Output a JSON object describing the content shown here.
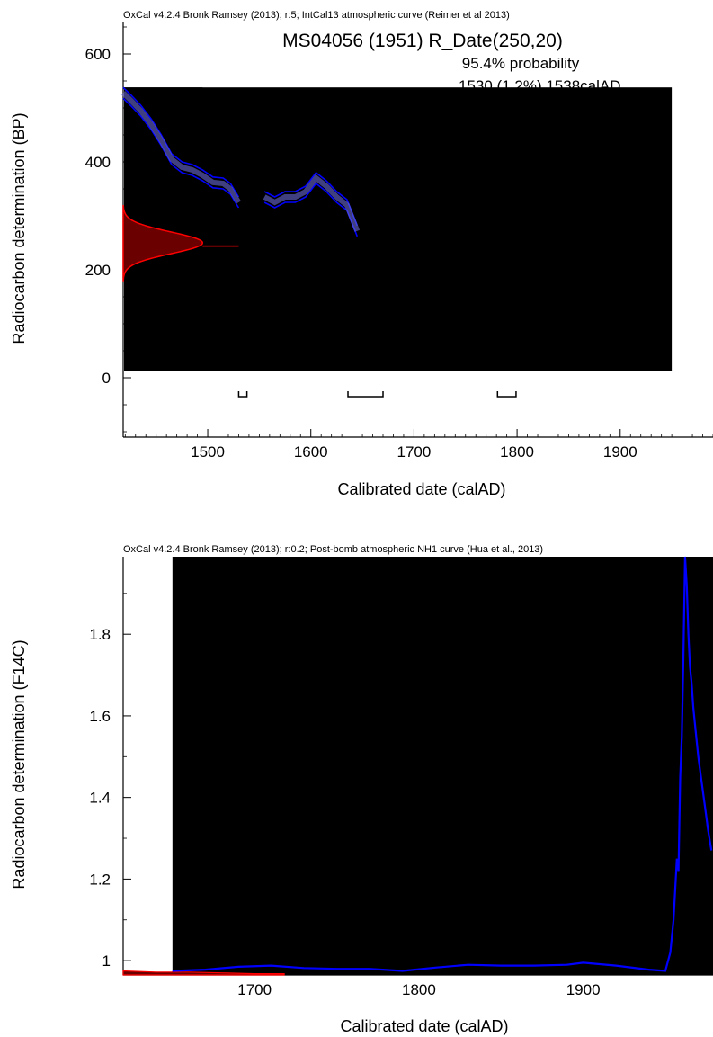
{
  "chart_data": [
    {
      "type": "line",
      "header": "OxCal v4.2.4 Bronk Ramsey (2013); r:5; IntCal13 atmospheric curve (Reimer et al 2013)",
      "title": "MS04056 (1951) R_Date(250,20)",
      "annotations": [
        "95.4% probability",
        "1530 (1.2%) 1538calAD"
      ],
      "xlabel": "Calibrated date (calAD)",
      "ylabel": "Radiocarbon determination (BP)",
      "xlim": [
        1418,
        1990
      ],
      "ylim": [
        -110,
        660
      ],
      "x_ticks": [
        1500,
        1600,
        1700,
        1800,
        1900
      ],
      "y_ticks": [
        0,
        200,
        400,
        600
      ],
      "grid": false,
      "colors": {
        "curve": "#0000ff",
        "band": "#6b6bd6",
        "measurement": "#ff0000",
        "measurement_fill": "#6b0000",
        "occluder": "#000000"
      },
      "occluders": [
        {
          "x": [
            1418,
            1950
          ],
          "y": [
            12,
            538
          ]
        },
        {
          "x": [
            1418,
            1495
          ],
          "y": [
            64,
            538
          ]
        }
      ],
      "series": [
        {
          "name": "IntCal13",
          "x": [
            1418,
            1425,
            1435,
            1445,
            1455,
            1465,
            1475,
            1485,
            1495,
            1505,
            1515,
            1522,
            1530
          ],
          "y": [
            528,
            515,
            495,
            470,
            440,
            405,
            390,
            385,
            375,
            362,
            360,
            350,
            325
          ]
        },
        {
          "name": "IntCal13 (2)",
          "x": [
            1555,
            1565,
            1575,
            1585,
            1595,
            1605,
            1615,
            1625,
            1635,
            1645
          ],
          "y": [
            335,
            325,
            335,
            335,
            345,
            370,
            355,
            335,
            320,
            272
          ]
        }
      ],
      "measurement": {
        "mean": 250,
        "sd": 20
      },
      "ranges_95": [
        [
          1530,
          1538
        ],
        [
          1636,
          1670
        ],
        [
          1781,
          1799
        ]
      ]
    },
    {
      "type": "line",
      "header": "OxCal v4.2.4 Bronk Ramsey (2013); r:0.2; Post-bomb atmospheric NH1 curve (Hua et al., 2013)",
      "xlabel": "Calibrated date (calAD)",
      "ylabel": "Radiocarbon determination (F14C)",
      "xlim": [
        1620,
        1979
      ],
      "ylim": [
        0.965,
        1.99
      ],
      "x_ticks": [
        1700,
        1800,
        1900
      ],
      "y_ticks": [
        1,
        1.2,
        1.4,
        1.6,
        1.8
      ],
      "grid": false,
      "colors": {
        "curve": "#0000ff",
        "measurement": "#ff0000",
        "measurement_fill": "#6b0000",
        "occluder": "#000000"
      },
      "occluders": [
        {
          "x": [
            1650,
            1979
          ],
          "y": [
            0.965,
            1.99
          ]
        }
      ],
      "series": [
        {
          "name": "NH1",
          "x": [
            1650,
            1670,
            1690,
            1710,
            1730,
            1750,
            1770,
            1790,
            1810,
            1830,
            1850,
            1870,
            1890,
            1900,
            1920,
            1940,
            1950,
            1953,
            1955,
            1957,
            1958,
            1959,
            1960,
            1961,
            1962,
            1963,
            1964,
            1965,
            1966,
            1967,
            1968,
            1970,
            1972,
            1974,
            1976,
            1978
          ],
          "y": [
            0.975,
            0.978,
            0.985,
            0.988,
            0.982,
            0.98,
            0.98,
            0.975,
            0.983,
            0.99,
            0.988,
            0.988,
            0.99,
            0.995,
            0.988,
            0.978,
            0.975,
            1.02,
            1.1,
            1.25,
            1.22,
            1.45,
            1.55,
            1.75,
            1.99,
            1.92,
            1.8,
            1.72,
            1.68,
            1.62,
            1.58,
            1.5,
            1.44,
            1.38,
            1.32,
            1.27
          ]
        }
      ],
      "measurement_shape_x": [
        1620,
        1640,
        1660,
        1680,
        1700,
        1718
      ],
      "measurement_shape_y": [
        0.975,
        0.972,
        0.972,
        0.97,
        0.968,
        0.968
      ]
    }
  ]
}
